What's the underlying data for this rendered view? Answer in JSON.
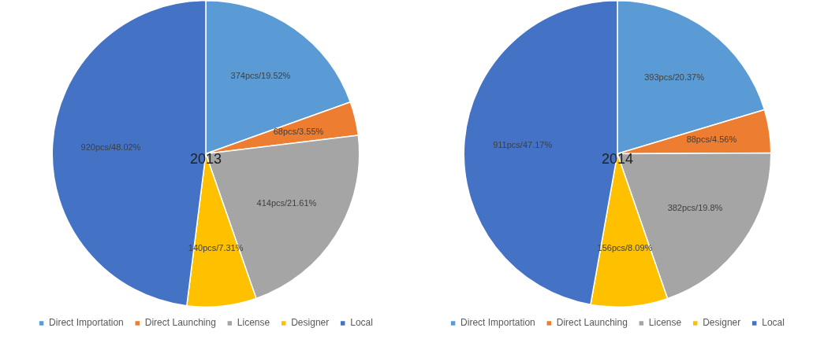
{
  "chart_data": [
    {
      "type": "pie",
      "title": "2013",
      "categories": [
        "Direct Importation",
        "Direct Launching",
        "License",
        "Designer",
        "Local"
      ],
      "values": [
        374,
        68,
        414,
        140,
        920
      ],
      "colors": [
        "#5b9bd5",
        "#ed7d31",
        "#a5a5a5",
        "#ffc000",
        "#4472c4"
      ],
      "value_labels": [
        "374pcs/19.52%",
        "68pcs/3.55%",
        "414pcs/21.61%",
        "140pcs/7.31%",
        "920pcs/48.02%"
      ],
      "legend": "bottom"
    },
    {
      "type": "pie",
      "title": "2014",
      "categories": [
        "Direct Importation",
        "Direct Launching",
        "License",
        "Designer",
        "Local"
      ],
      "values": [
        393,
        88,
        382,
        156,
        911
      ],
      "colors": [
        "#5b9bd5",
        "#ed7d31",
        "#a5a5a5",
        "#ffc000",
        "#4472c4"
      ],
      "value_labels": [
        "393pcs/20.37%",
        "88pcs/4.56%",
        "382pcs/19.8%",
        "156pcs/8.09%",
        "911pcs/47.17%"
      ],
      "legend": "bottom"
    }
  ]
}
